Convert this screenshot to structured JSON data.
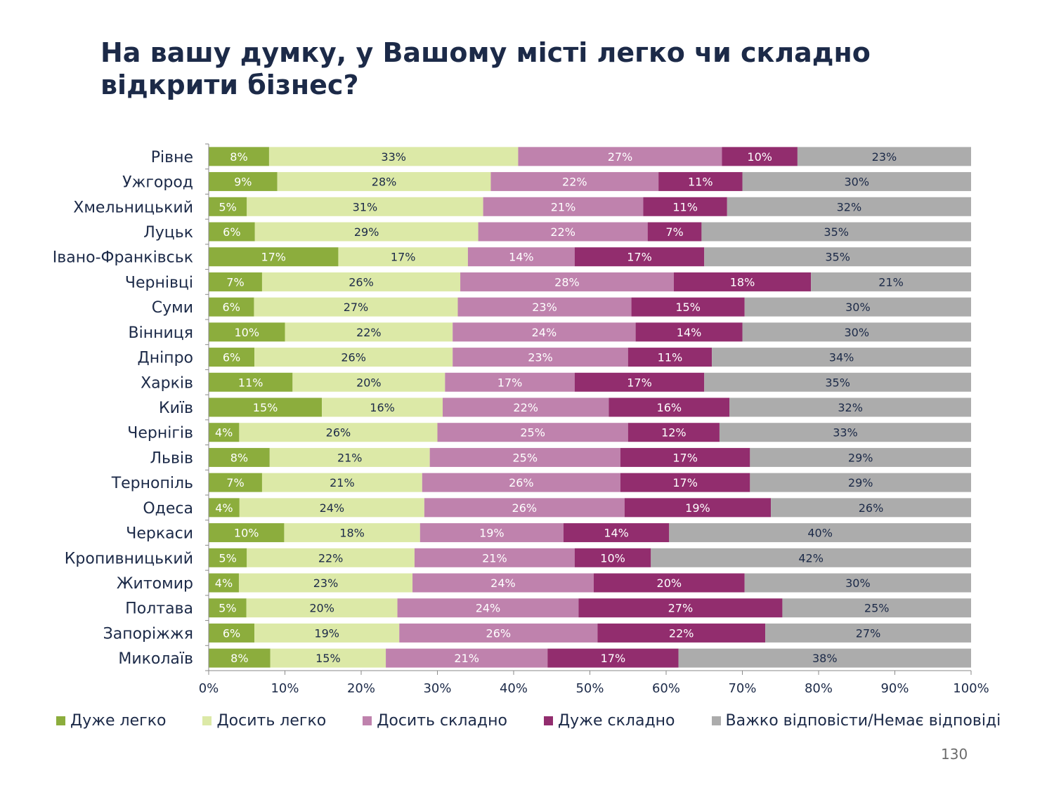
{
  "slide": {
    "title": "На вашу думку, у Вашому місті легко чи складно відкрити бізнес?",
    "page_number": "130"
  },
  "colors": {
    "title": "#1c2a48",
    "accent_green": "#8cad3d",
    "deco_grey": "#ececec",
    "series": [
      "#8cad3d",
      "#dce9a7",
      "#bf82ad",
      "#922d6e",
      "#acacac"
    ],
    "label_dark": "#1c2a48",
    "label_light": "#ffffff"
  },
  "chart_data": {
    "type": "bar",
    "orientation": "horizontal",
    "stacked": "percent",
    "categories": [
      "Рівне",
      "Ужгород",
      "Хмельницький",
      "Луцьк",
      "Івано-Франківськ",
      "Чернівці",
      "Суми",
      "Вінниця",
      "Дніпро",
      "Харків",
      "Київ",
      "Чернігів",
      "Львів",
      "Тернопіль",
      "Одеса",
      "Черкаси",
      "Кропивницький",
      "Житомир",
      "Полтава",
      "Запоріжжя",
      "Миколаїв"
    ],
    "series": [
      {
        "name": "Дуже легко",
        "values": [
          8,
          9,
          5,
          6,
          17,
          7,
          6,
          10,
          6,
          11,
          15,
          4,
          8,
          7,
          4,
          10,
          5,
          4,
          5,
          6,
          8
        ]
      },
      {
        "name": "Досить легко",
        "values": [
          33,
          28,
          31,
          29,
          17,
          26,
          27,
          22,
          26,
          20,
          16,
          26,
          21,
          21,
          24,
          18,
          22,
          23,
          20,
          19,
          15
        ]
      },
      {
        "name": "Досить складно",
        "values": [
          27,
          22,
          21,
          22,
          14,
          28,
          23,
          24,
          23,
          17,
          22,
          25,
          25,
          26,
          26,
          19,
          21,
          24,
          24,
          26,
          21
        ]
      },
      {
        "name": "Дуже складно",
        "values": [
          10,
          11,
          11,
          7,
          17,
          18,
          15,
          14,
          11,
          17,
          16,
          12,
          17,
          17,
          19,
          14,
          10,
          20,
          27,
          22,
          17
        ]
      },
      {
        "name": "Важко відповісти/Немає відповіді",
        "values": [
          23,
          30,
          32,
          35,
          35,
          21,
          30,
          30,
          34,
          35,
          32,
          33,
          29,
          29,
          26,
          40,
          42,
          30,
          25,
          27,
          38
        ]
      }
    ],
    "xaxis": {
      "ticks": [
        "0%",
        "10%",
        "20%",
        "30%",
        "40%",
        "50%",
        "60%",
        "70%",
        "80%",
        "90%",
        "100%"
      ],
      "range": [
        0,
        100
      ]
    },
    "legend_position": "bottom",
    "grid": false
  }
}
